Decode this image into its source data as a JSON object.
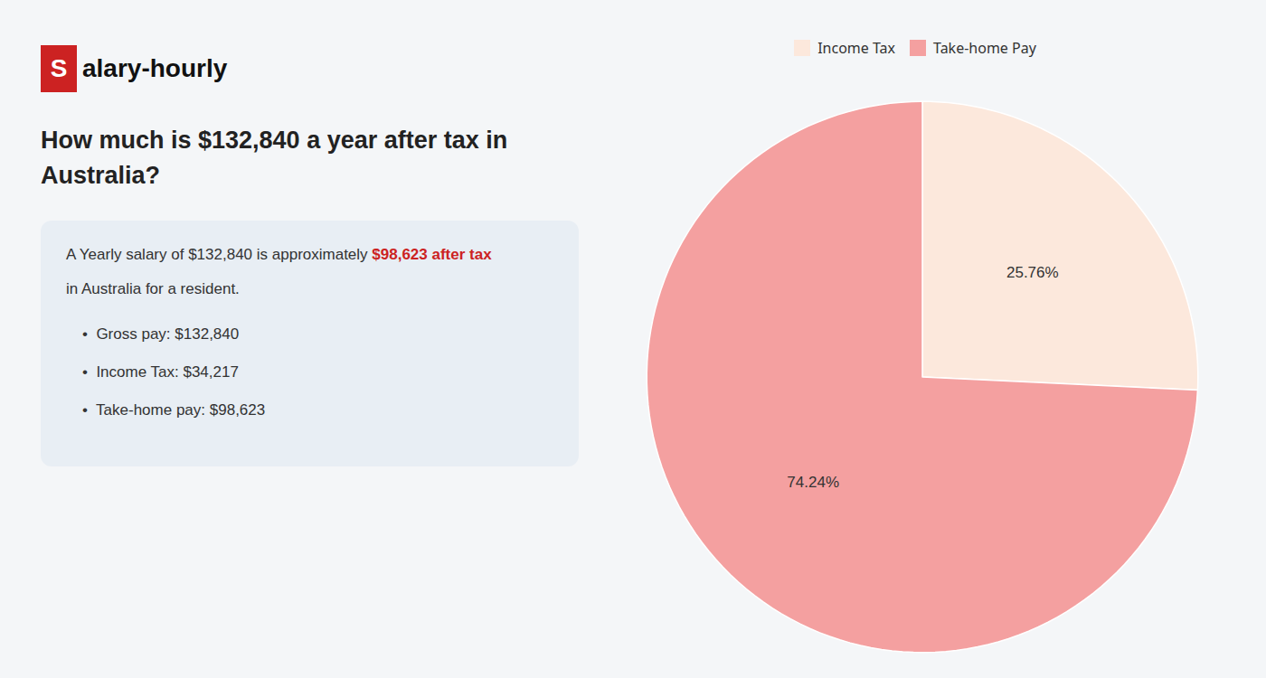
{
  "chart_data": {
    "type": "pie",
    "title": "How much is $132,840 a year after tax in\nAustralia?",
    "categories": [
      "Income Tax",
      "Take-home Pay"
    ],
    "values": [
      25.76,
      74.24
    ],
    "value_labels": [
      "25.76%",
      "74.24%"
    ],
    "colors": [
      "#fce8dc",
      "#f4a0a0"
    ],
    "data_labels": true,
    "legend": "top",
    "annotations": [
      {
        "text": "S",
        "color": "#cc2222"
      },
      {
        "text": "alary-hourly"
      },
      {
        "text": "A Yearly salary of $132,840 is approximately "
      },
      {
        "text": "$98,623 after tax",
        "color": "#cc2222"
      },
      {
        "text": "in Australia for a resident."
      },
      {
        "text": "•  Gross pay: $132,840"
      },
      {
        "text": "•  Income Tax: $34,217"
      },
      {
        "text": "•  Take-home pay: $98,623"
      }
    ]
  }
}
